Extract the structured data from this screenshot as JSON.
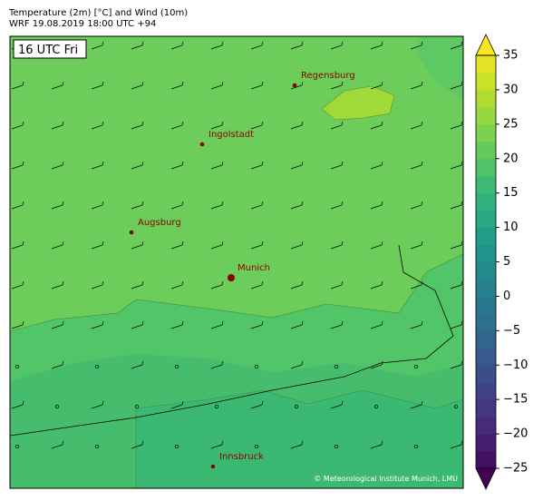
{
  "header": {
    "line1": "Temperature (2m) [°C] and Wind (10m)",
    "line2": "WRF 19.08.2019 18:00 UTC +94"
  },
  "map": {
    "time_label": "16 UTC Fri",
    "cities": [
      {
        "name": "Regensburg"
      },
      {
        "name": "Ingolstadt"
      },
      {
        "name": "Augsburg"
      },
      {
        "name": "Munich"
      },
      {
        "name": "Innsbruck"
      }
    ],
    "credit": "© Meteorological Institute Munich, LMU"
  },
  "colorbar": {
    "lim": [
      -25,
      35
    ],
    "ticks": [
      {
        "value": -25,
        "label": "−25"
      },
      {
        "value": -20,
        "label": "−20"
      },
      {
        "value": -15,
        "label": "−15"
      },
      {
        "value": -10,
        "label": "−10"
      },
      {
        "value": -5,
        "label": "−5"
      },
      0,
      5,
      10,
      15,
      20,
      25,
      30,
      35
    ]
  }
}
